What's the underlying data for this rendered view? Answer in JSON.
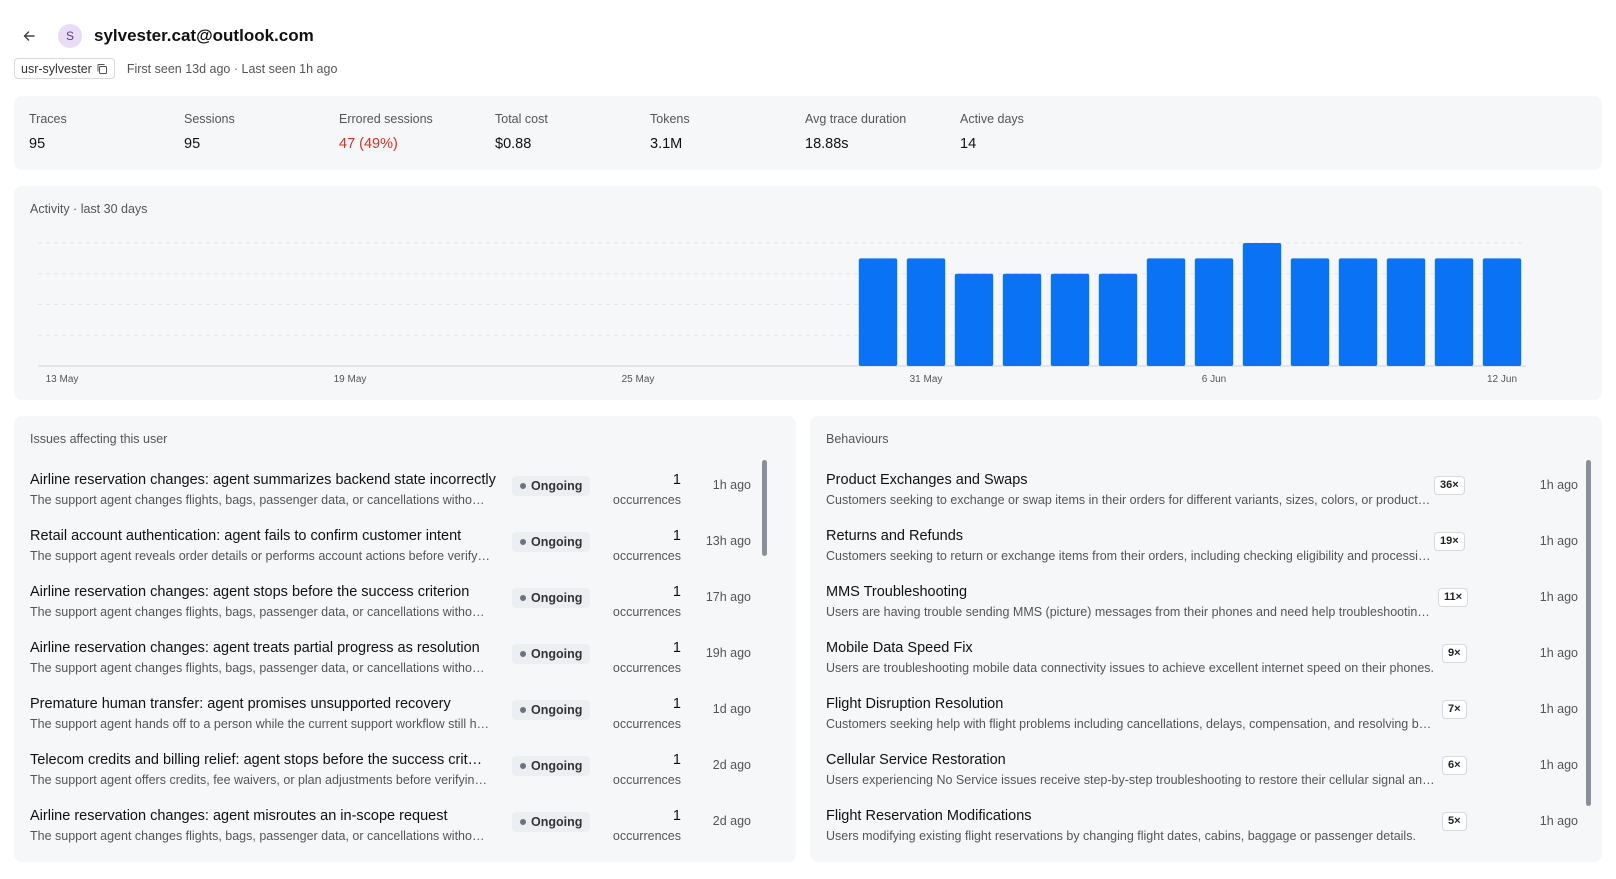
{
  "header": {
    "back_icon": "arrow-left-icon",
    "avatar_initial": "S",
    "email": "sylvester.cat@outlook.com",
    "user_id": "usr-sylvester",
    "copy_icon": "copy-icon",
    "seen_text": "First seen 13d ago · Last seen 1h ago"
  },
  "stats": [
    {
      "label": "Traces",
      "value": "95"
    },
    {
      "label": "Sessions",
      "value": "95"
    },
    {
      "label": "Errored sessions",
      "value": "47 (49%)"
    },
    {
      "label": "Total cost",
      "value": "$0.88"
    },
    {
      "label": "Tokens",
      "value": "3.1M"
    },
    {
      "label": "Avg trace duration",
      "value": "18.88s"
    },
    {
      "label": "Active days",
      "value": "14"
    }
  ],
  "colors": {
    "accent": "#0a72f5",
    "error": "#d93025",
    "panel_bg": "#f6f7f9"
  },
  "activity": {
    "title": "Activity · last 30 days"
  },
  "chart_data": {
    "type": "bar",
    "title": "Activity · last 30 days",
    "x": [
      "13 May",
      "14 May",
      "15 May",
      "16 May",
      "17 May",
      "18 May",
      "19 May",
      "20 May",
      "21 May",
      "22 May",
      "23 May",
      "24 May",
      "25 May",
      "26 May",
      "27 May",
      "28 May",
      "29 May",
      "30 May",
      "31 May",
      "1 Jun",
      "2 Jun",
      "3 Jun",
      "4 Jun",
      "5 Jun",
      "6 Jun",
      "7 Jun",
      "8 Jun",
      "9 Jun",
      "10 Jun",
      "11 Jun",
      "12 Jun"
    ],
    "values": [
      0,
      0,
      0,
      0,
      0,
      0,
      0,
      0,
      0,
      0,
      0,
      0,
      0,
      0,
      0,
      0,
      0,
      7,
      7,
      6,
      6,
      6,
      6,
      7,
      7,
      8,
      7,
      7,
      7,
      7,
      7
    ],
    "tick_labels": [
      "13 May",
      "19 May",
      "25 May",
      "31 May",
      "6 Jun",
      "12 Jun"
    ],
    "ylim": [
      0,
      8
    ],
    "grid": true,
    "xlabel": "",
    "ylabel": ""
  },
  "issues": {
    "title": "Issues affecting this user",
    "items": [
      {
        "title": "Airline reservation changes: agent summarizes backend state incorrectly",
        "desc": "The support agent changes flights, bags, passenger data, or cancellations without confirming the backend state",
        "status": "Ongoing",
        "count": "1",
        "count_label": "occurrences",
        "time": "1h ago"
      },
      {
        "title": "Retail account authentication: agent fails to confirm customer intent",
        "desc": "The support agent reveals order details or performs account actions before verifying identity",
        "status": "Ongoing",
        "count": "1",
        "count_label": "occurrences",
        "time": "13h ago"
      },
      {
        "title": "Airline reservation changes: agent stops before the success criterion",
        "desc": "The support agent changes flights, bags, passenger data, or cancellations without confirming the backend state",
        "status": "Ongoing",
        "count": "1",
        "count_label": "occurrences",
        "time": "17h ago"
      },
      {
        "title": "Airline reservation changes: agent treats partial progress as resolution",
        "desc": "The support agent changes flights, bags, passenger data, or cancellations without confirming the backend state",
        "status": "Ongoing",
        "count": "1",
        "count_label": "occurrences",
        "time": "19h ago"
      },
      {
        "title": "Premature human transfer: agent promises unsupported recovery",
        "desc": "The support agent hands off to a person while the current support workflow still has steps remaining",
        "status": "Ongoing",
        "count": "1",
        "count_label": "occurrences",
        "time": "1d ago"
      },
      {
        "title": "Telecom credits and billing relief: agent stops before the success criterion",
        "desc": "The support agent offers credits, fee waivers, or plan adjustments before verifying eligibility",
        "status": "Ongoing",
        "count": "1",
        "count_label": "occurrences",
        "time": "2d ago"
      },
      {
        "title": "Airline reservation changes: agent misroutes an in-scope request",
        "desc": "The support agent changes flights, bags, passenger data, or cancellations without confirming the backend state",
        "status": "Ongoing",
        "count": "1",
        "count_label": "occurrences",
        "time": "2d ago"
      }
    ]
  },
  "behaviours": {
    "title": "Behaviours",
    "items": [
      {
        "title": "Product Exchanges and Swaps",
        "desc": "Customers seeking to exchange or swap items in their orders for different variants, sizes, colors, or product types.",
        "count": "36×",
        "time": "1h ago"
      },
      {
        "title": "Returns and Refunds",
        "desc": "Customers seeking to return or exchange items from their orders, including checking eligibility and processing refunds.",
        "count": "19×",
        "time": "1h ago"
      },
      {
        "title": "MMS Troubleshooting",
        "desc": "Users are having trouble sending MMS (picture) messages from their phones and need help troubleshooting their settings.",
        "count": "11×",
        "time": "1h ago"
      },
      {
        "title": "Mobile Data Speed Fix",
        "desc": "Users are troubleshooting mobile data connectivity issues to achieve excellent internet speed on their phones.",
        "count": "9×",
        "time": "1h ago"
      },
      {
        "title": "Flight Disruption Resolution",
        "desc": "Customers seeking help with flight problems including cancellations, delays, compensation, and resolving booking issues.",
        "count": "7×",
        "time": "1h ago"
      },
      {
        "title": "Cellular Service Restoration",
        "desc": "Users experiencing No Service issues receive step-by-step troubleshooting to restore their cellular signal and connectivity.",
        "count": "6×",
        "time": "1h ago"
      },
      {
        "title": "Flight Reservation Modifications",
        "desc": "Users modifying existing flight reservations by changing flight dates, cabins, baggage or passenger details.",
        "count": "5×",
        "time": "1h ago"
      }
    ]
  }
}
